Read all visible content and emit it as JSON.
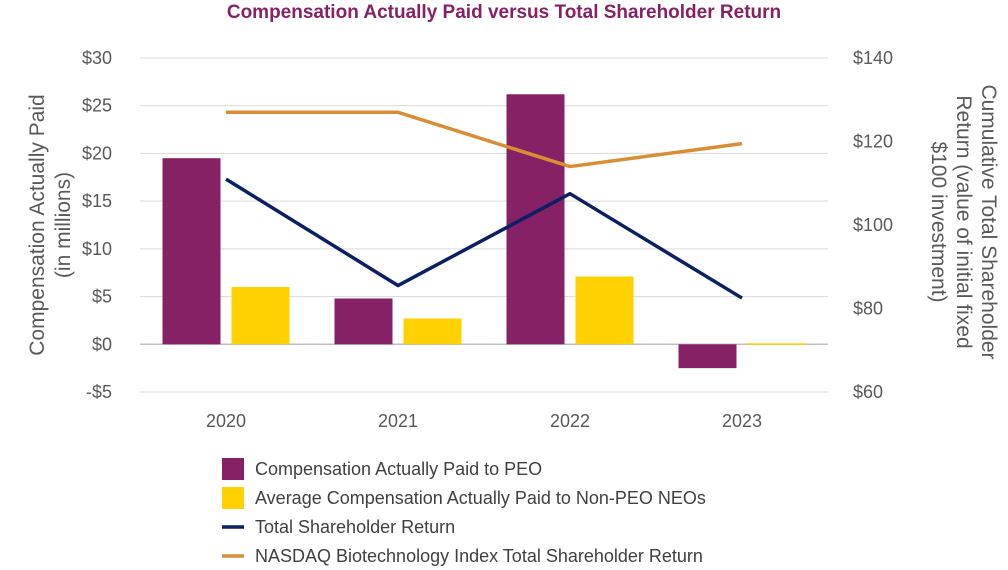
{
  "chart_data": {
    "type": "bar",
    "title": "Compensation Actually Paid versus Total Shareholder Return",
    "categories": [
      "2020",
      "2021",
      "2022",
      "2023"
    ],
    "y_left": {
      "label_lines": [
        "Compensation Actually Paid",
        "(in millions)"
      ],
      "range": [
        -5,
        30
      ],
      "ticks": [
        -5,
        0,
        5,
        10,
        15,
        20,
        25,
        30
      ],
      "tick_labels": [
        "-$5",
        "$0",
        "$5",
        "$10",
        "$15",
        "$20",
        "$25",
        "$30"
      ]
    },
    "y_right": {
      "label_lines": [
        "Cumulative Total Shareholder",
        "Return (value of initial fixed",
        "$100 investment)"
      ],
      "range": [
        60,
        140
      ],
      "ticks": [
        60,
        80,
        100,
        120,
        140
      ],
      "tick_labels": [
        "$60",
        "$80",
        "$100",
        "$120",
        "$140"
      ]
    },
    "grid": true,
    "legend_position": "bottom",
    "series": [
      {
        "name": "Compensation Actually Paid to PEO",
        "kind": "bar",
        "axis": "left",
        "color": "#862165",
        "values": [
          19.5,
          4.8,
          26.2,
          -2.5
        ]
      },
      {
        "name": "Average Compensation Actually Paid to Non-PEO NEOs",
        "kind": "bar",
        "axis": "left",
        "color": "#FFD100",
        "values": [
          6.0,
          2.7,
          7.1,
          0.1
        ]
      },
      {
        "name": "Total Shareholder Return",
        "kind": "line",
        "axis": "right",
        "color": "#0B1F65",
        "values": [
          111,
          85.5,
          107.5,
          82.5
        ]
      },
      {
        "name": "NASDAQ Biotechnology Index Total Shareholder Return",
        "kind": "line",
        "axis": "right",
        "color": "#D98E34",
        "values": [
          127,
          127,
          114,
          119.5
        ]
      }
    ]
  },
  "colors": {
    "title": "#862165",
    "gridline": "#D9D9D9",
    "zero_line": "#BFBFBF"
  }
}
